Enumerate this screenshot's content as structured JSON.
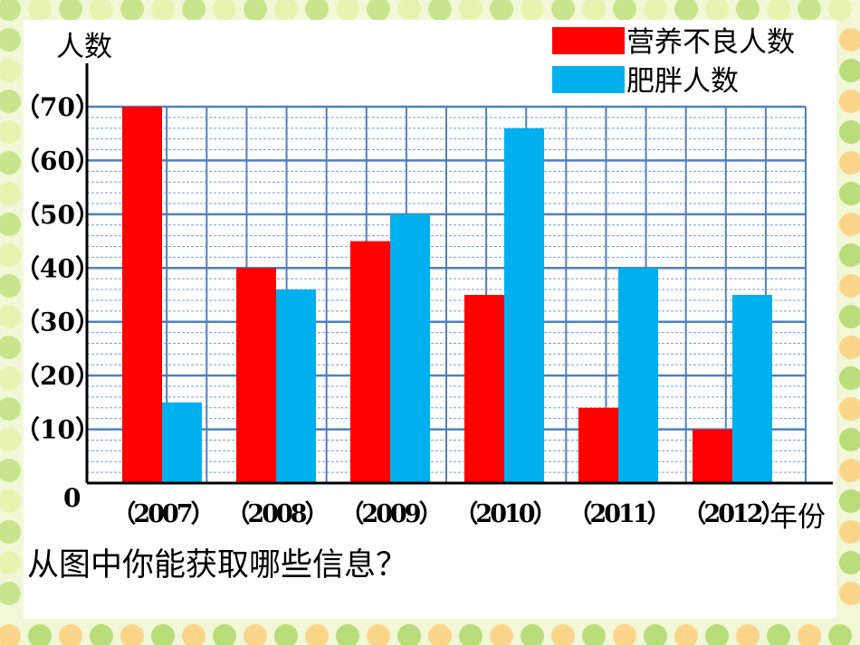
{
  "chart_data": {
    "type": "bar",
    "ylabel": "人数",
    "xlabel": "年份",
    "categories": [
      "（2007）",
      "（2008）",
      "（2009）",
      "（2010）",
      "（2011）",
      "（2012）"
    ],
    "series": [
      {
        "name": "营养不良人数",
        "values": [
          70,
          40,
          45,
          35,
          14,
          10
        ]
      },
      {
        "name": "肥胖人数",
        "values": [
          15,
          36,
          50,
          66,
          40,
          35
        ]
      }
    ],
    "yticks": [
      "0",
      "（10）",
      "（20）",
      "（30）",
      "（40）",
      "（50）",
      "（60）",
      "（70）"
    ],
    "ylim": [
      0,
      70
    ],
    "grid": true,
    "legend_position": "top-right"
  },
  "question": "从图中你能获取哪些信息？",
  "colors": {
    "malnutrition": "#ff0000",
    "obesity": "#00b0ee",
    "grid": "#4f81bd",
    "minor_grid": "#7f9fc9",
    "background": "#f2f7d8"
  }
}
